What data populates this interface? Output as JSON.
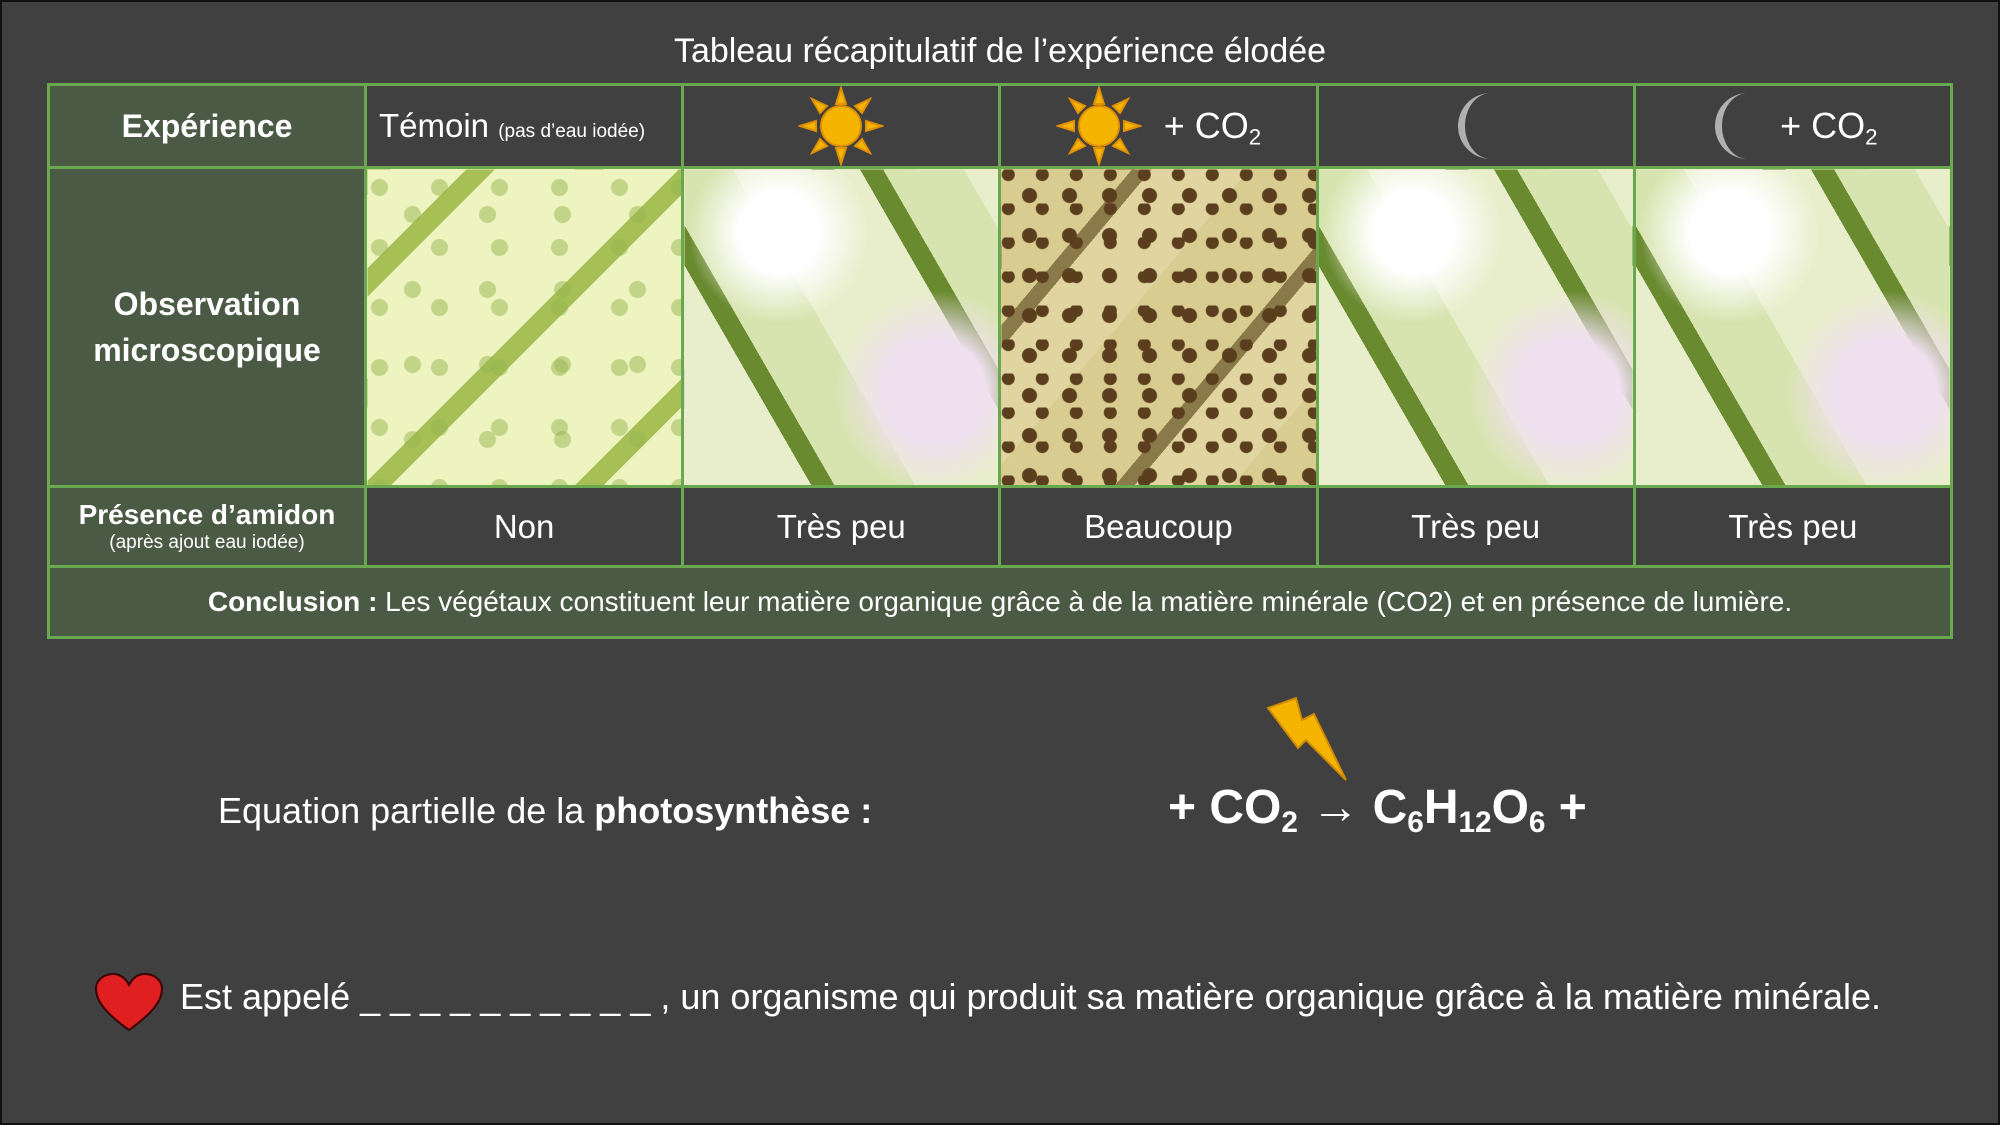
{
  "title": "Tableau récapitulatif de l’expérience élodée",
  "table": {
    "row_labels": {
      "experience": "Expérience",
      "observation": "Observation microscopique",
      "amidon": "Présence d’amidon",
      "amidon_note": "(après ajout eau iodée)"
    },
    "temoin": {
      "label": "Témoin",
      "note": "(pas d’eau iodée)"
    },
    "co2_prefix": "+ CO",
    "co2_sub": "2",
    "columns": [
      {
        "icon": "",
        "amidon": "Non"
      },
      {
        "icon": "sun-icon",
        "amidon": "Très peu"
      },
      {
        "icon": "sun-icon",
        "amidon": "Beaucoup"
      },
      {
        "icon": "moon-icon",
        "amidon": "Très peu"
      },
      {
        "icon": "moon-icon",
        "amidon": "Très peu"
      }
    ],
    "conclusion_label": "Conclusion :",
    "conclusion_text": " Les végétaux constituent leur matière organique grâce à de la matière minérale (CO2) et en présence de lumière."
  },
  "equation": {
    "label_prefix": "Equation partielle de la ",
    "label_bold": "photosynthèse :",
    "plus1": "+ CO",
    "co2_sub": "2",
    "arrow": " → C",
    "c_sub": "6",
    "h": "H",
    "h_sub": "12",
    "o": "O",
    "o_sub": "6",
    "plus2": " +"
  },
  "definition": "Est appelé _ _ _ _ _ _ _ _ _ _ , un organisme qui produit sa matière organique grâce à la matière minérale.",
  "colors": {
    "background": "#404040",
    "border": "#6aa84f",
    "label_fill": "#4a5a44",
    "sun": "#f5b400",
    "moon": "#b0b0b0",
    "heart": "#e02020",
    "bolt": "#f5b400"
  }
}
